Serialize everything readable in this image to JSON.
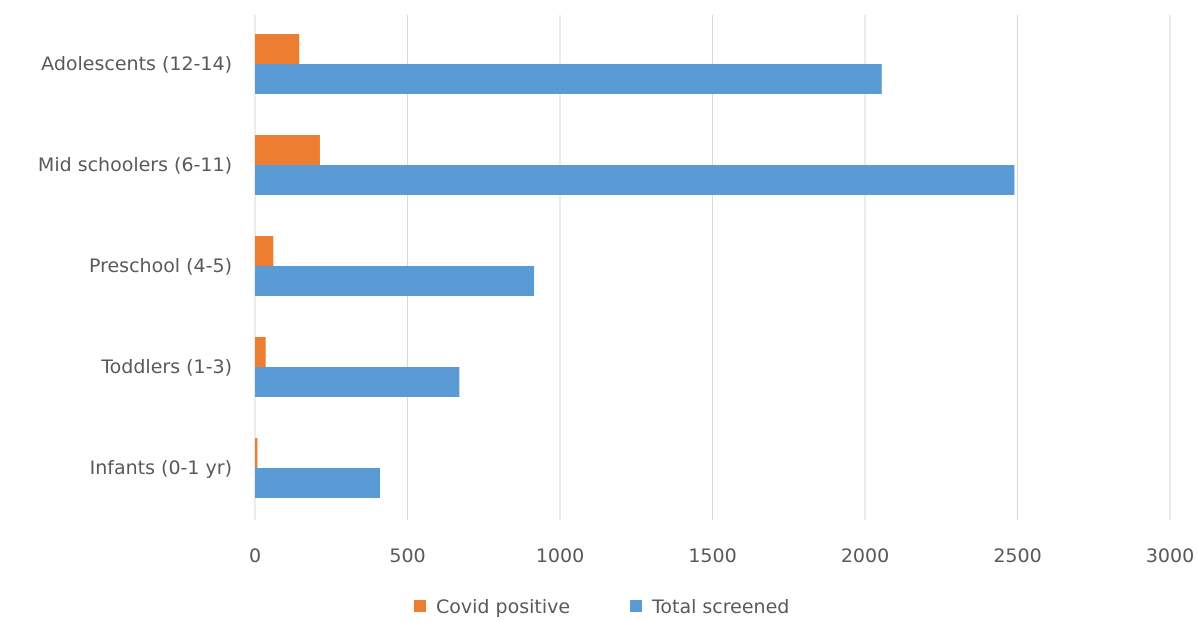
{
  "chart_data": {
    "type": "bar",
    "orientation": "horizontal",
    "categories": [
      "Adolescents (12-14)",
      "Mid schoolers (6-11)",
      "Preschool (4-5)",
      "Toddlers (1-3)",
      "Infants (0-1 yr)"
    ],
    "series": [
      {
        "name": "Covid positive",
        "color": "#ED7D31",
        "values": [
          145,
          213,
          60,
          35,
          8
        ]
      },
      {
        "name": "Total screened",
        "color": "#5B9BD5",
        "values": [
          2055,
          2490,
          915,
          670,
          410
        ]
      }
    ],
    "xlim": [
      0,
      3000
    ],
    "xticks": [
      0,
      500,
      1000,
      1500,
      2000,
      2500,
      3000
    ],
    "title": "",
    "xlabel": "",
    "ylabel": "",
    "grid": "vertical",
    "legend": "bottom-center"
  }
}
